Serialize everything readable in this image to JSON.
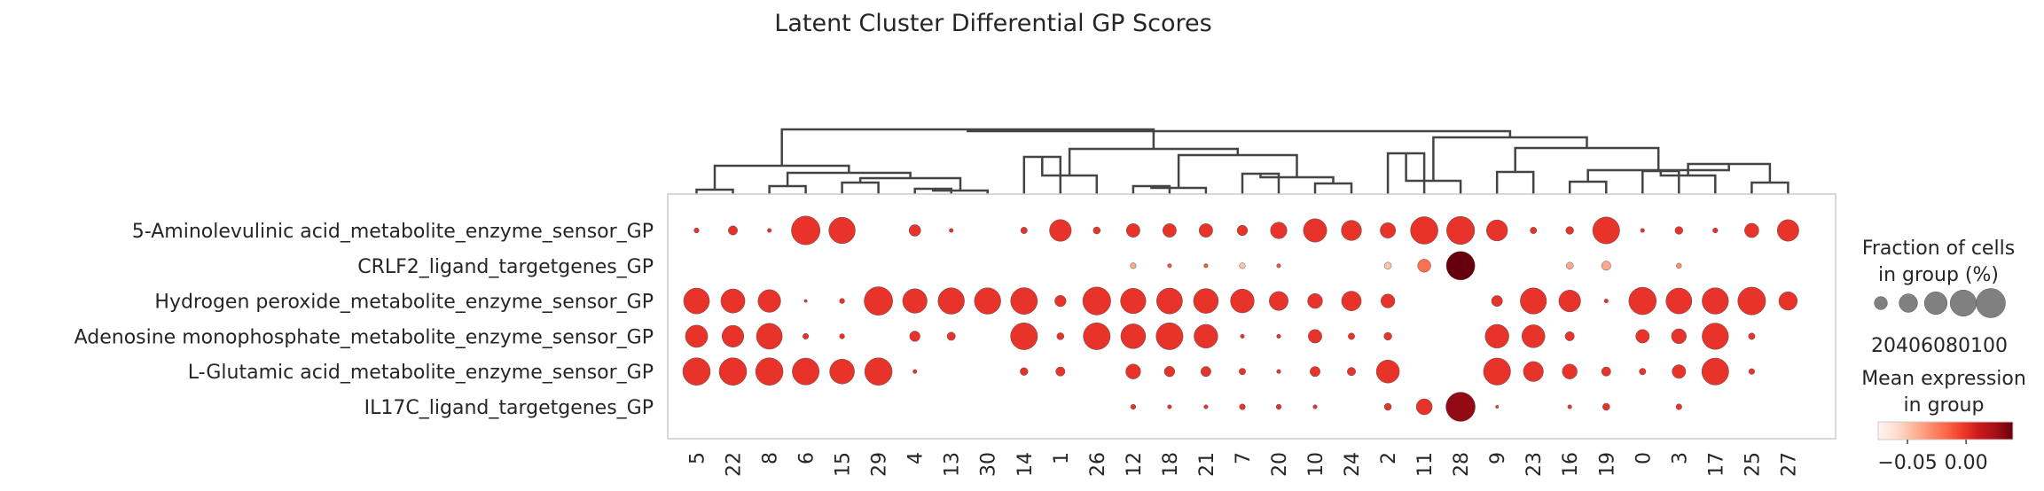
{
  "chart_data": {
    "type": "dotplot",
    "title": "Latent Cluster Differential GP Scores",
    "genes": [
      "5-Aminolevulinic acid_metabolite_enzyme_sensor_GP",
      "CRLF2_ligand_targetgenes_GP",
      "Hydrogen peroxide_metabolite_enzyme_sensor_GP",
      "Adenosine monophosphate_metabolite_enzyme_sensor_GP",
      "L-Glutamic acid_metabolite_enzyme_sensor_GP",
      "IL17C_ligand_targetgenes_GP"
    ],
    "clusters": [
      "5",
      "22",
      "8",
      "6",
      "15",
      "29",
      "4",
      "13",
      "30",
      "14",
      "1",
      "26",
      "12",
      "18",
      "21",
      "7",
      "20",
      "10",
      "24",
      "2",
      "11",
      "28",
      "9",
      "23",
      "16",
      "19",
      "0",
      "3",
      "17",
      "25",
      "27"
    ],
    "fraction_pct": [
      [
        3,
        10,
        2,
        96,
        82,
        0,
        16,
        2,
        0,
        5,
        56,
        6,
        22,
        22,
        22,
        13,
        32,
        64,
        48,
        28,
        88,
        92,
        52,
        5,
        7,
        85,
        2,
        7,
        3,
        24,
        55
      ],
      [
        0,
        0,
        0,
        0,
        0,
        0,
        0,
        0,
        0,
        0,
        0,
        0,
        4,
        2,
        2,
        4,
        2,
        0,
        0,
        6,
        20,
        95,
        0,
        0,
        6,
        10,
        0,
        3,
        0,
        0,
        0
      ],
      [
        78,
        68,
        60,
        1,
        3,
        95,
        70,
        82,
        82,
        84,
        15,
        92,
        75,
        78,
        72,
        66,
        42,
        26,
        45,
        23,
        0,
        0,
        14,
        80,
        56,
        2,
        88,
        78,
        82,
        90,
        40
      ],
      [
        58,
        56,
        78,
        4,
        3,
        0,
        13,
        8,
        0,
        85,
        6,
        85,
        72,
        85,
        66,
        2,
        2,
        22,
        5,
        7,
        0,
        0,
        66,
        62,
        10,
        0,
        22,
        26,
        82,
        5,
        0
      ],
      [
        88,
        88,
        88,
        85,
        72,
        88,
        2,
        0,
        0,
        7,
        10,
        0,
        26,
        13,
        12,
        5,
        2,
        12,
        8,
        62,
        0,
        0,
        86,
        47,
        26,
        10,
        5,
        22,
        85,
        4,
        0
      ],
      [
        0,
        0,
        0,
        0,
        0,
        0,
        0,
        0,
        0,
        0,
        0,
        0,
        3,
        2,
        2,
        4,
        3,
        2,
        0,
        6,
        30,
        100,
        1,
        0,
        2,
        6,
        0,
        4,
        0,
        0,
        0
      ]
    ],
    "mean_expression": [
      [
        0.0,
        0.0,
        0.0,
        0.0,
        0.0,
        0.0,
        0.0,
        0.0,
        0.0,
        0.0,
        0.0,
        0.0,
        0.0,
        0.0,
        0.0,
        0.0,
        0.0,
        0.0,
        0.0,
        0.0,
        0.0,
        0.0,
        0.0,
        0.0,
        0.0,
        0.0,
        0.0,
        0.0,
        0.0,
        0.0,
        0.0
      ],
      [
        0.0,
        0.0,
        0.0,
        0.0,
        0.0,
        0.0,
        0.0,
        0.0,
        0.0,
        0.0,
        0.0,
        0.0,
        -0.04,
        -0.01,
        -0.01,
        -0.05,
        -0.01,
        0.0,
        0.0,
        -0.05,
        -0.02,
        0.045,
        0.0,
        0.0,
        -0.04,
        -0.04,
        0.0,
        -0.03,
        0.0,
        0.0,
        0.0
      ],
      [
        0.0,
        0.0,
        0.0,
        0.0,
        0.0,
        0.0,
        0.0,
        0.0,
        0.0,
        0.0,
        0.0,
        0.0,
        0.0,
        0.0,
        0.0,
        0.0,
        0.0,
        0.0,
        0.0,
        0.0,
        0.0,
        0.0,
        0.0,
        0.0,
        0.0,
        0.0,
        0.0,
        0.0,
        0.0,
        0.0,
        0.0
      ],
      [
        0.0,
        0.0,
        0.0,
        0.0,
        0.0,
        0.0,
        0.0,
        0.0,
        0.0,
        0.0,
        0.0,
        0.0,
        0.0,
        0.0,
        0.0,
        0.0,
        0.0,
        0.0,
        0.0,
        0.0,
        0.0,
        0.0,
        0.0,
        0.0,
        0.0,
        0.0,
        0.0,
        0.0,
        0.0,
        0.0,
        0.0
      ],
      [
        0.0,
        0.0,
        0.0,
        0.0,
        0.0,
        0.0,
        0.0,
        0.0,
        0.0,
        0.0,
        0.0,
        0.0,
        0.0,
        0.0,
        0.0,
        0.0,
        0.0,
        0.0,
        0.0,
        0.0,
        0.0,
        0.0,
        0.0,
        0.0,
        0.0,
        0.0,
        0.0,
        0.0,
        0.0,
        0.0,
        0.0
      ],
      [
        0.0,
        0.0,
        0.0,
        0.0,
        0.0,
        0.0,
        0.0,
        0.0,
        0.0,
        0.0,
        0.0,
        0.0,
        0.0,
        0.0,
        0.0,
        0.0,
        0.0,
        0.0,
        0.0,
        0.0,
        0.0,
        0.03,
        0.0,
        0.0,
        0.0,
        0.0,
        0.0,
        0.0,
        0.0,
        0.0,
        0.0
      ]
    ],
    "size_legend": {
      "title": "Fraction of cells\nin group (%)",
      "values": [
        20,
        40,
        60,
        80,
        100
      ],
      "labels": [
        "20",
        "40",
        "60",
        "80",
        "100"
      ]
    },
    "color_legend": {
      "title": "Mean expression\nin group",
      "range": [
        -0.075,
        0.04
      ],
      "ticks": [
        -0.05,
        0.0
      ],
      "tick_labels": [
        "−0.05",
        "0.00"
      ],
      "colormap": "Reds"
    },
    "dendrogram": "top",
    "grid": false
  }
}
